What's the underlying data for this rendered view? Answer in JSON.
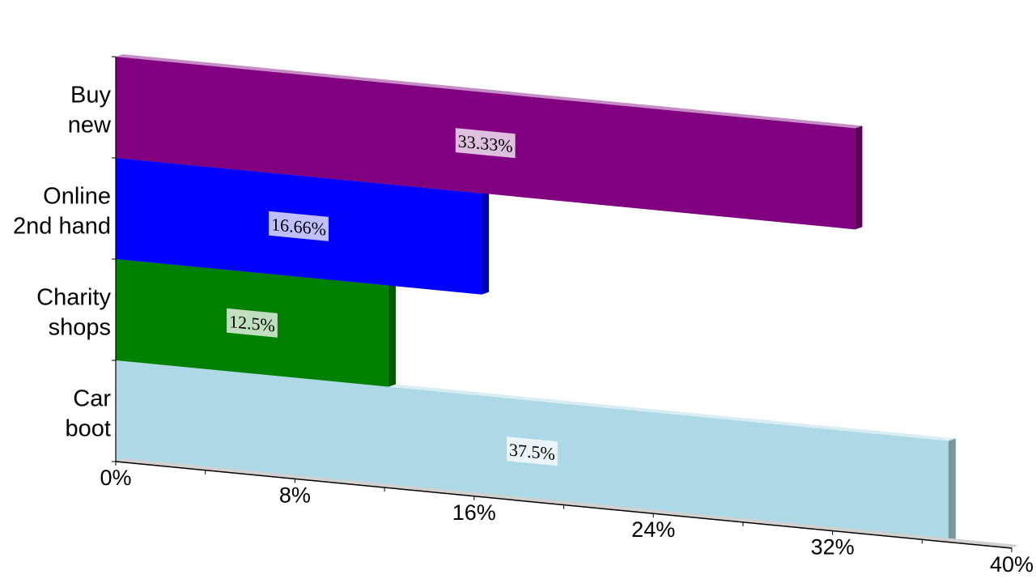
{
  "chart_data": {
    "type": "bar",
    "orientation": "horizontal",
    "style": "3d",
    "categories": [
      "Buy new",
      "Online 2nd hand",
      "Charity shops",
      "Car boot"
    ],
    "category_lines": [
      [
        "Buy",
        "new"
      ],
      [
        "Online",
        "2nd hand"
      ],
      [
        "Charity",
        "shops"
      ],
      [
        "Car",
        "boot"
      ]
    ],
    "values": [
      33.33,
      16.66,
      12.5,
      37.5
    ],
    "data_labels": [
      "33.33%",
      "16.66%",
      "12.5%",
      "37.5%"
    ],
    "colors": [
      "#800080",
      "#0000ff",
      "#008000",
      "#add8e6"
    ],
    "xlim": [
      0,
      40
    ],
    "x_ticks": [
      0,
      8,
      16,
      24,
      32,
      40
    ],
    "x_tick_labels": [
      "0%",
      "8%",
      "16%",
      "24%",
      "32%",
      "40%"
    ],
    "grid": false,
    "legend": "none",
    "title": "",
    "xlabel": "",
    "ylabel": ""
  }
}
